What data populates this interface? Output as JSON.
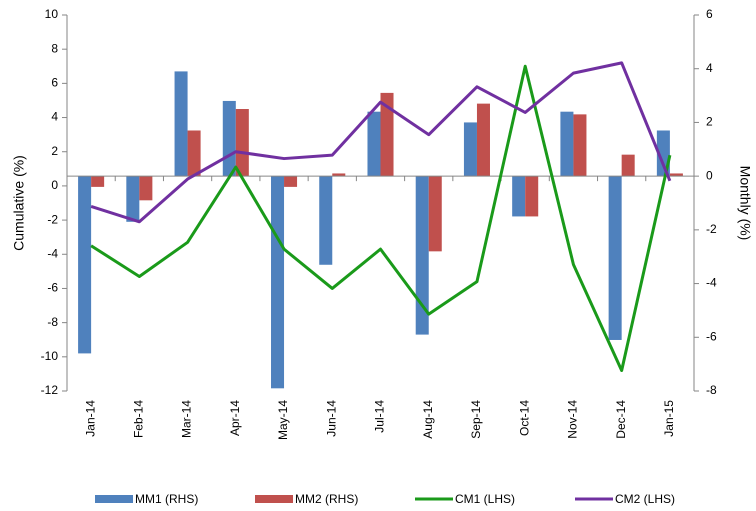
{
  "chart_data": {
    "type": "bar-line",
    "y_label": "Cumulative (%)",
    "y2_label": "Monthly (%)",
    "categories": [
      "Jan-14",
      "Feb-14",
      "Mar-14",
      "Apr-14",
      "May-14",
      "Jun-14",
      "Jul-14",
      "Aug-14",
      "Sep-14",
      "Oct-14",
      "Nov-14",
      "Dec-14",
      "Jan-15"
    ],
    "ylim": [
      -12,
      10
    ],
    "yticks": [
      -12,
      -10,
      -8,
      -6,
      -4,
      -2,
      0,
      2,
      4,
      6,
      8,
      10
    ],
    "y2lim": [
      -8,
      6
    ],
    "y2ticks": [
      -8,
      -6,
      -4,
      -2,
      0,
      2,
      4,
      6
    ],
    "series": [
      {
        "name": "MM1 (RHS)",
        "kind": "bar",
        "axis": "y2",
        "color": "#4f81bd",
        "values": [
          -6.6,
          -1.7,
          3.9,
          2.8,
          -7.9,
          -3.3,
          2.4,
          -5.9,
          2.0,
          -1.5,
          2.4,
          -6.1,
          1.7
        ]
      },
      {
        "name": "MM2 (RHS)",
        "kind": "bar",
        "axis": "y2",
        "color": "#c0504d",
        "values": [
          -0.4,
          -0.9,
          1.7,
          2.5,
          -0.4,
          0.1,
          3.1,
          -2.8,
          2.7,
          -1.5,
          2.3,
          0.8,
          0.1
        ]
      },
      {
        "name": "CM1 (LHS)",
        "kind": "line",
        "color": "#1a9a1a",
        "values": [
          -3.5,
          -5.3,
          -3.3,
          1.1,
          -3.7,
          -6.0,
          -3.7,
          -7.5,
          -5.6,
          7.0,
          -4.6,
          -10.8,
          1.8
        ]
      },
      {
        "name": "CM2 (LHS)",
        "kind": "line",
        "color": "#7030a0",
        "values": [
          -1.2,
          -2.1,
          0.4,
          2.0,
          1.6,
          1.8,
          4.9,
          3.0,
          5.8,
          4.3,
          6.6,
          7.2,
          0.3
        ]
      }
    ]
  }
}
